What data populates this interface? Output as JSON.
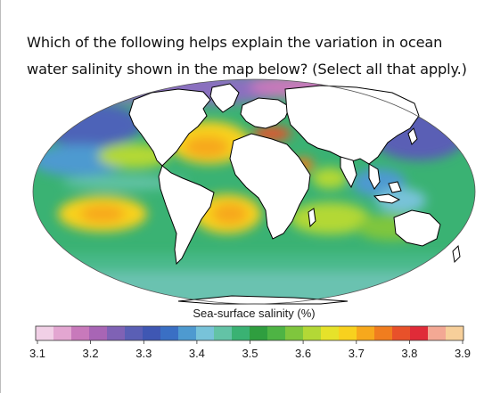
{
  "question": {
    "line1": "Which of the following helps explain the variation in ocean",
    "line2": "water salinity shown in the map below? (Select all that apply.)"
  },
  "map": {
    "projection": "Mollweide (elliptical world map)",
    "variable": "sea-surface salinity"
  },
  "legend": {
    "title": "Sea-surface salinity (%)",
    "ticks": [
      "3.1",
      "3.2",
      "3.3",
      "3.4",
      "3.5",
      "3.6",
      "3.7",
      "3.8",
      "3.9"
    ],
    "colors": [
      "#f1d0e6",
      "#e3a6d1",
      "#c879bb",
      "#a865b5",
      "#7f62b5",
      "#5a5fb5",
      "#3f57b3",
      "#3a6fc4",
      "#4e9ad0",
      "#78c3d9",
      "#63c3a6",
      "#3ab273",
      "#2f9e3f",
      "#4eb444",
      "#7fc63d",
      "#b3d836",
      "#e6e22a",
      "#f8d11e",
      "#f7a81c",
      "#f07d1f",
      "#e8512a",
      "#e02b38",
      "#f3a894",
      "#f7cf9a"
    ]
  },
  "colors": {
    "land": "#ffffff",
    "coastline": "#000000",
    "ocean_mid": "#3ab273"
  }
}
